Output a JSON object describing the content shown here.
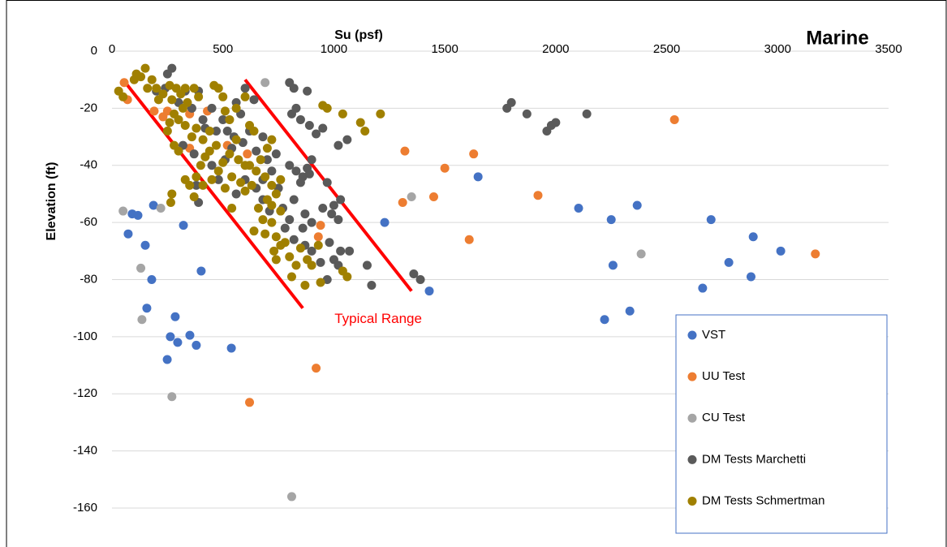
{
  "chart_data": {
    "type": "scatter",
    "title": "Marine",
    "x_label": "Su (psf)",
    "y_label": "Elevation (ft)",
    "xlim": [
      0,
      3500
    ],
    "xticks": [
      0,
      500,
      1000,
      1500,
      2000,
      2500,
      3000,
      3500
    ],
    "ylim": [
      -160,
      0
    ],
    "yticks": [
      -160,
      -140,
      -120,
      -100,
      -80,
      -60,
      -40,
      -20,
      0
    ],
    "grid": true,
    "x_axis_position": "top",
    "legend": "lower right",
    "series": [
      {
        "name": "VST",
        "color": "#4472c4",
        "x": [
          73,
          91,
          117,
          150,
          179,
          157,
          187,
          285,
          322,
          263,
          296,
          351,
          380,
          249,
          402,
          538,
          1229,
          1430,
          1650,
          2103,
          2250,
          2258,
          2367,
          2334,
          2220,
          2700,
          2780,
          2890,
          2880,
          3014,
          2662
        ],
        "values": [
          -64,
          -57,
          -57.5,
          -68,
          -80,
          -90,
          -54,
          -93,
          -61,
          -100,
          -102,
          -99.5,
          -103,
          -108,
          -77,
          -104,
          -60,
          -84,
          -44,
          -55,
          -59,
          -75,
          -54,
          -91,
          -94,
          -59,
          -74,
          -65,
          -79,
          -70,
          -83
        ]
      },
      {
        "name": "UU Test",
        "color": "#ed7d31",
        "x": [
          55,
          70,
          190,
          230,
          250,
          350,
          350,
          430,
          930,
          940,
          920,
          620,
          1320,
          1310,
          1450,
          1500,
          1630,
          1610,
          1920,
          2535,
          3170,
          610,
          520
        ],
        "values": [
          -11,
          -17,
          -21,
          -23,
          -21,
          -22,
          -34,
          -21,
          -65,
          -61,
          -111,
          -123,
          -35,
          -53,
          -51,
          -41,
          -36,
          -66,
          -50.5,
          -24,
          -71,
          -36,
          -33
        ]
      },
      {
        "name": "CU Test",
        "color": "#a5a5a5",
        "x": [
          50,
          130,
          135,
          220,
          270,
          690,
          1350,
          2385,
          810
        ],
        "values": [
          -56,
          -76,
          -94,
          -55,
          -121,
          -11,
          -51,
          -71,
          -156
        ]
      },
      {
        "name": "DM Tests Marchetti",
        "color": "#5a5a5a",
        "x": [
          200,
          250,
          270,
          240,
          300,
          330,
          360,
          390,
          410,
          450,
          470,
          500,
          520,
          550,
          580,
          600,
          640,
          560,
          590,
          620,
          650,
          680,
          700,
          720,
          740,
          750,
          770,
          800,
          820,
          830,
          810,
          880,
          850,
          890,
          920,
          950,
          1020,
          1060,
          800,
          830,
          860,
          880,
          900,
          850,
          890,
          820,
          870,
          970,
          1000,
          1030,
          1020,
          950,
          990,
          900,
          860,
          780,
          800,
          820,
          870,
          900,
          940,
          980,
          1000,
          1020,
          1030,
          1070,
          970,
          1150,
          1170,
          1360,
          1390,
          650,
          680,
          710,
          600,
          560,
          1780,
          1800,
          1870,
          1960,
          1980,
          2000,
          2140,
          370,
          390,
          380,
          320,
          420,
          450,
          480,
          510,
          540,
          680
        ],
        "values": [
          -14,
          -8,
          -6,
          -13,
          -18,
          -14,
          -20,
          -14,
          -24,
          -20,
          -28,
          -24,
          -28,
          -30,
          -22,
          -13,
          -17,
          -18,
          -32,
          -28,
          -35,
          -30,
          -38,
          -42,
          -36,
          -48,
          -55,
          -11,
          -13,
          -20,
          -22,
          -14,
          -24,
          -26,
          -29,
          -27,
          -33,
          -31,
          -40,
          -42,
          -44,
          -41,
          -38,
          -46,
          -43,
          -52,
          -57,
          -46,
          -54,
          -52,
          -59,
          -55,
          -57,
          -60,
          -62,
          -62,
          -59,
          -66,
          -68,
          -70,
          -74,
          -67,
          -73,
          -75,
          -70,
          -70,
          -80,
          -75,
          -82,
          -78,
          -80,
          -48,
          -52,
          -56,
          -45,
          -50,
          -20,
          -18,
          -22,
          -28,
          -26,
          -25,
          -22,
          -36,
          -53,
          -47,
          -33,
          -27,
          -40,
          -45,
          -38,
          -34,
          -45
        ]
      },
      {
        "name": "DM Tests Schmertman",
        "color": "#a08000",
        "x": [
          30,
          50,
          100,
          110,
          130,
          150,
          160,
          180,
          200,
          210,
          230,
          260,
          270,
          290,
          310,
          320,
          330,
          340,
          370,
          390,
          300,
          280,
          260,
          250,
          330,
          360,
          380,
          410,
          440,
          460,
          480,
          500,
          510,
          530,
          560,
          600,
          620,
          640,
          560,
          530,
          500,
          470,
          440,
          420,
          400,
          380,
          350,
          330,
          300,
          280,
          370,
          270,
          265,
          410,
          450,
          480,
          510,
          540,
          580,
          600,
          620,
          650,
          670,
          700,
          720,
          690,
          720,
          740,
          700,
          660,
          680,
          640,
          720,
          740,
          760,
          730,
          740,
          780,
          800,
          830,
          850,
          880,
          900,
          930,
          810,
          870,
          940,
          1040,
          1060,
          950,
          970,
          1040,
          1120,
          1140,
          1210,
          760,
          720,
          690,
          630,
          570,
          540,
          600,
          760
        ],
        "values": [
          -14,
          -16,
          -10,
          -8,
          -9,
          -6,
          -13,
          -10,
          -13,
          -17,
          -15,
          -12,
          -17,
          -13,
          -15,
          -20,
          -13,
          -18,
          -13,
          -16,
          -24,
          -22,
          -25,
          -28,
          -26,
          -30,
          -27,
          -31,
          -28,
          -12,
          -13,
          -16,
          -21,
          -24,
          -20,
          -16,
          -26,
          -28,
          -31,
          -36,
          -39,
          -33,
          -35,
          -37,
          -40,
          -44,
          -47,
          -45,
          -35,
          -33,
          -51,
          -50,
          -53,
          -47,
          -45,
          -42,
          -48,
          -44,
          -46,
          -49,
          -40,
          -42,
          -38,
          -34,
          -31,
          -44,
          -47,
          -50,
          -52,
          -55,
          -59,
          -63,
          -60,
          -65,
          -68,
          -70,
          -73,
          -67,
          -72,
          -75,
          -69,
          -73,
          -75,
          -68,
          -79,
          -82,
          -81,
          -77,
          -79,
          -19,
          -20,
          -22,
          -25,
          -28,
          -22,
          -56,
          -54,
          -64,
          -47,
          -38,
          -55,
          -40,
          -45
        ]
      }
    ],
    "annotation": {
      "text": "Typical Range",
      "x": 1200,
      "y": -94,
      "color": "#ff0000",
      "lines": [
        {
          "x": [
            50,
            860
          ],
          "values": [
            -10,
            -90
          ]
        },
        {
          "x": [
            600,
            1350
          ],
          "values": [
            -10,
            -84
          ]
        }
      ]
    }
  }
}
